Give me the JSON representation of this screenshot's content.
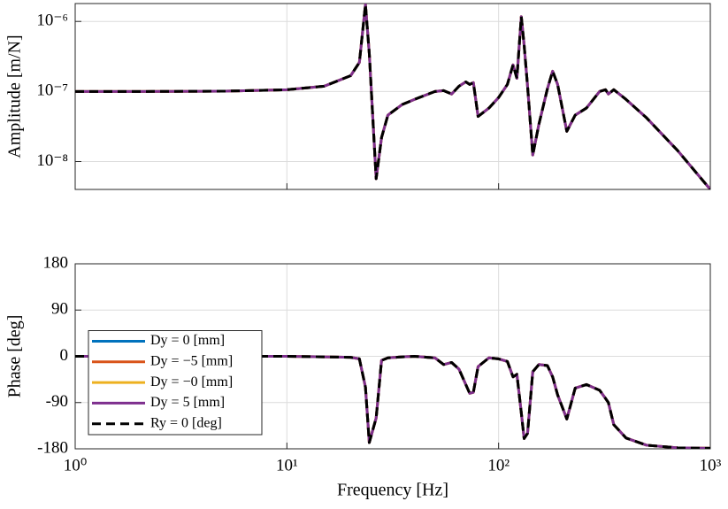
{
  "chart_data": [
    {
      "type": "line",
      "ylabel": "Amplitude [m/N]",
      "xscale": "log",
      "yscale": "log",
      "grid": true,
      "xlim": [
        1,
        1000
      ],
      "xticks": [
        1,
        10,
        100,
        1000
      ],
      "ylim": [
        4e-09,
        1.8e-06
      ],
      "yticks": [
        {
          "value": 1e-08,
          "label": "10⁻⁸"
        },
        {
          "value": 1e-07,
          "label": "10⁻⁷"
        },
        {
          "value": 1e-06,
          "label": "10⁻⁶"
        }
      ],
      "x": [
        1,
        2,
        5,
        10,
        15,
        20,
        22,
        23.5,
        24.5,
        26.4,
        28,
        30,
        35,
        40,
        50,
        55,
        60,
        65,
        70,
        73,
        76,
        80,
        90,
        100,
        110,
        117,
        122,
        128,
        132,
        137,
        145,
        155,
        170,
        180,
        190,
        210,
        230,
        260,
        300,
        320,
        330,
        350,
        400,
        500,
        700,
        1000
      ],
      "series": [
        {
          "color": "#0072BD",
          "dash": false,
          "values": [
            1e-07,
            1e-07,
            1.01e-07,
            1.06e-07,
            1.19e-07,
            1.68e-07,
            2.6e-07,
            1.75e-06,
            3.5e-07,
            5.7e-09,
            2.2e-08,
            4.6e-08,
            6.5e-08,
            7.7e-08,
            1e-07,
            1.03e-07,
            9.2e-08,
            1.19e-07,
            1.37e-07,
            1.26e-07,
            1.34e-07,
            4.4e-08,
            5.8e-08,
            8.2e-08,
            1.26e-07,
            2.4e-07,
            1.54e-07,
            1.17e-06,
            4.6e-07,
            1.2e-07,
            1.24e-08,
            3.4e-08,
            1.09e-07,
            1.95e-07,
            1.26e-07,
            2.7e-08,
            4.6e-08,
            5.8e-08,
            1e-07,
            1.06e-07,
            9.2e-08,
            1.06e-07,
            7.7e-08,
            4.2e-08,
            1.44e-08,
            4e-09
          ]
        },
        {
          "color": "#D95319",
          "dash": false,
          "values": [
            1e-07,
            1e-07,
            1.01e-07,
            1.06e-07,
            1.19e-07,
            1.68e-07,
            2.6e-07,
            1.75e-06,
            3.5e-07,
            5.7e-09,
            2.2e-08,
            4.6e-08,
            6.5e-08,
            7.7e-08,
            1e-07,
            1.03e-07,
            9.2e-08,
            1.19e-07,
            1.37e-07,
            1.26e-07,
            1.34e-07,
            4.4e-08,
            5.8e-08,
            8.2e-08,
            1.26e-07,
            2.4e-07,
            1.54e-07,
            1.17e-06,
            4.6e-07,
            1.2e-07,
            1.24e-08,
            3.4e-08,
            1.09e-07,
            1.95e-07,
            1.26e-07,
            2.7e-08,
            4.6e-08,
            5.8e-08,
            1e-07,
            1.06e-07,
            9.2e-08,
            1.06e-07,
            7.7e-08,
            4.2e-08,
            1.44e-08,
            4e-09
          ]
        },
        {
          "color": "#EDB120",
          "dash": false,
          "values": [
            1e-07,
            1e-07,
            1.01e-07,
            1.06e-07,
            1.19e-07,
            1.68e-07,
            2.6e-07,
            1.75e-06,
            3.5e-07,
            5.7e-09,
            2.2e-08,
            4.6e-08,
            6.5e-08,
            7.7e-08,
            1e-07,
            1.03e-07,
            9.2e-08,
            1.19e-07,
            1.37e-07,
            1.26e-07,
            1.34e-07,
            4.4e-08,
            5.8e-08,
            8.2e-08,
            1.26e-07,
            2.4e-07,
            1.54e-07,
            1.17e-06,
            4.6e-07,
            1.2e-07,
            1.24e-08,
            3.4e-08,
            1.09e-07,
            1.95e-07,
            1.26e-07,
            2.7e-08,
            4.6e-08,
            5.8e-08,
            1e-07,
            1.06e-07,
            9.2e-08,
            1.06e-07,
            7.7e-08,
            4.2e-08,
            1.44e-08,
            4e-09
          ]
        },
        {
          "color": "#7E2F8E",
          "dash": false,
          "values": [
            1e-07,
            1e-07,
            1.01e-07,
            1.06e-07,
            1.19e-07,
            1.68e-07,
            2.6e-07,
            1.75e-06,
            3.5e-07,
            5.7e-09,
            2.2e-08,
            4.6e-08,
            6.5e-08,
            7.7e-08,
            1e-07,
            1.03e-07,
            9.2e-08,
            1.19e-07,
            1.37e-07,
            1.26e-07,
            1.34e-07,
            4.4e-08,
            5.8e-08,
            8.2e-08,
            1.26e-07,
            2.4e-07,
            1.54e-07,
            1.17e-06,
            4.6e-07,
            1.2e-07,
            1.24e-08,
            3.4e-08,
            1.09e-07,
            1.95e-07,
            1.26e-07,
            2.7e-08,
            4.6e-08,
            5.8e-08,
            1e-07,
            1.06e-07,
            9.2e-08,
            1.06e-07,
            7.7e-08,
            4.2e-08,
            1.44e-08,
            4e-09
          ]
        },
        {
          "color": "#000000",
          "dash": true,
          "values": [
            1e-07,
            1e-07,
            1.01e-07,
            1.06e-07,
            1.19e-07,
            1.68e-07,
            2.6e-07,
            1.75e-06,
            3.5e-07,
            5.7e-09,
            2.2e-08,
            4.6e-08,
            6.5e-08,
            7.7e-08,
            1e-07,
            1.03e-07,
            9.2e-08,
            1.19e-07,
            1.37e-07,
            1.26e-07,
            1.34e-07,
            4.4e-08,
            5.8e-08,
            8.2e-08,
            1.26e-07,
            2.4e-07,
            1.54e-07,
            1.17e-06,
            4.6e-07,
            1.2e-07,
            1.24e-08,
            3.4e-08,
            1.09e-07,
            1.95e-07,
            1.26e-07,
            2.7e-08,
            4.6e-08,
            5.8e-08,
            1e-07,
            1.06e-07,
            9.2e-08,
            1.06e-07,
            7.7e-08,
            4.2e-08,
            1.44e-08,
            4e-09
          ]
        }
      ]
    },
    {
      "type": "line",
      "ylabel": "Phase [deg]",
      "xlabel": "Frequency [Hz]",
      "xscale": "log",
      "yscale": "linear",
      "grid": true,
      "legend": "lower left",
      "xlim": [
        1,
        1000
      ],
      "xticks": [
        {
          "value": 1,
          "label": "10⁰"
        },
        {
          "value": 10,
          "label": "10¹"
        },
        {
          "value": 100,
          "label": "10²"
        },
        {
          "value": 1000,
          "label": "10³"
        }
      ],
      "ylim": [
        -180,
        180
      ],
      "yticks": [
        -180,
        -90,
        0,
        90,
        180
      ],
      "x": [
        1,
        2,
        5,
        10,
        15,
        20,
        22,
        23.5,
        24.5,
        26.4,
        28,
        30,
        35,
        40,
        50,
        55,
        60,
        65,
        70,
        73,
        76,
        80,
        90,
        100,
        110,
        117,
        122,
        128,
        132,
        137,
        145,
        155,
        170,
        180,
        190,
        210,
        230,
        260,
        300,
        320,
        330,
        350,
        400,
        500,
        700,
        1000
      ],
      "series": [
        {
          "name": "Dy = 0 [mm]",
          "color": "#0072BD",
          "dash": false,
          "values": [
            0,
            0,
            0,
            0,
            -1,
            -2,
            -5,
            -60,
            -168,
            -120,
            -8,
            -3,
            -1,
            0,
            -3,
            -16,
            -12,
            -25,
            -55,
            -72,
            -70,
            -20,
            -3,
            -5,
            -10,
            -40,
            -35,
            -110,
            -160,
            -150,
            -30,
            -16,
            -18,
            -40,
            -75,
            -122,
            -62,
            -55,
            -66,
            -82,
            -90,
            -133,
            -159,
            -173,
            -178,
            -179
          ]
        },
        {
          "name": "Dy = −5 [mm]",
          "color": "#D95319",
          "dash": false,
          "values": [
            0,
            0,
            0,
            0,
            -1,
            -2,
            -5,
            -60,
            -168,
            -120,
            -8,
            -3,
            -1,
            0,
            -3,
            -16,
            -12,
            -25,
            -55,
            -72,
            -70,
            -20,
            -3,
            -5,
            -10,
            -40,
            -35,
            -110,
            -160,
            -150,
            -30,
            -16,
            -18,
            -40,
            -75,
            -122,
            -62,
            -55,
            -66,
            -82,
            -90,
            -133,
            -159,
            -173,
            -178,
            -179
          ]
        },
        {
          "name": "Dy = −0 [mm]",
          "color": "#EDB120",
          "dash": false,
          "values": [
            0,
            0,
            0,
            0,
            -1,
            -2,
            -5,
            -60,
            -168,
            -120,
            -8,
            -3,
            -1,
            0,
            -3,
            -16,
            -12,
            -25,
            -55,
            -72,
            -70,
            -20,
            -3,
            -5,
            -10,
            -40,
            -35,
            -110,
            -160,
            -150,
            -30,
            -16,
            -18,
            -40,
            -75,
            -122,
            -62,
            -55,
            -66,
            -82,
            -90,
            -133,
            -159,
            -173,
            -178,
            -179
          ]
        },
        {
          "name": "Dy = 5 [mm]",
          "color": "#7E2F8E",
          "dash": false,
          "values": [
            0,
            0,
            0,
            0,
            -1,
            -2,
            -5,
            -60,
            -168,
            -120,
            -8,
            -3,
            -1,
            0,
            -3,
            -16,
            -12,
            -25,
            -55,
            -72,
            -70,
            -20,
            -3,
            -5,
            -10,
            -40,
            -35,
            -110,
            -160,
            -150,
            -30,
            -16,
            -18,
            -40,
            -75,
            -122,
            -62,
            -55,
            -66,
            -82,
            -90,
            -133,
            -159,
            -173,
            -178,
            -179
          ]
        },
        {
          "name": "Ry = 0 [deg]",
          "color": "#000000",
          "dash": true,
          "values": [
            0,
            0,
            0,
            0,
            -1,
            -2,
            -5,
            -60,
            -168,
            -120,
            -8,
            -3,
            -1,
            0,
            -3,
            -16,
            -12,
            -25,
            -55,
            -72,
            -70,
            -20,
            -3,
            -5,
            -10,
            -40,
            -35,
            -110,
            -160,
            -150,
            -30,
            -16,
            -18,
            -40,
            -75,
            -122,
            -62,
            -55,
            -66,
            -82,
            -90,
            -133,
            -159,
            -173,
            -178,
            -179
          ]
        }
      ]
    }
  ]
}
